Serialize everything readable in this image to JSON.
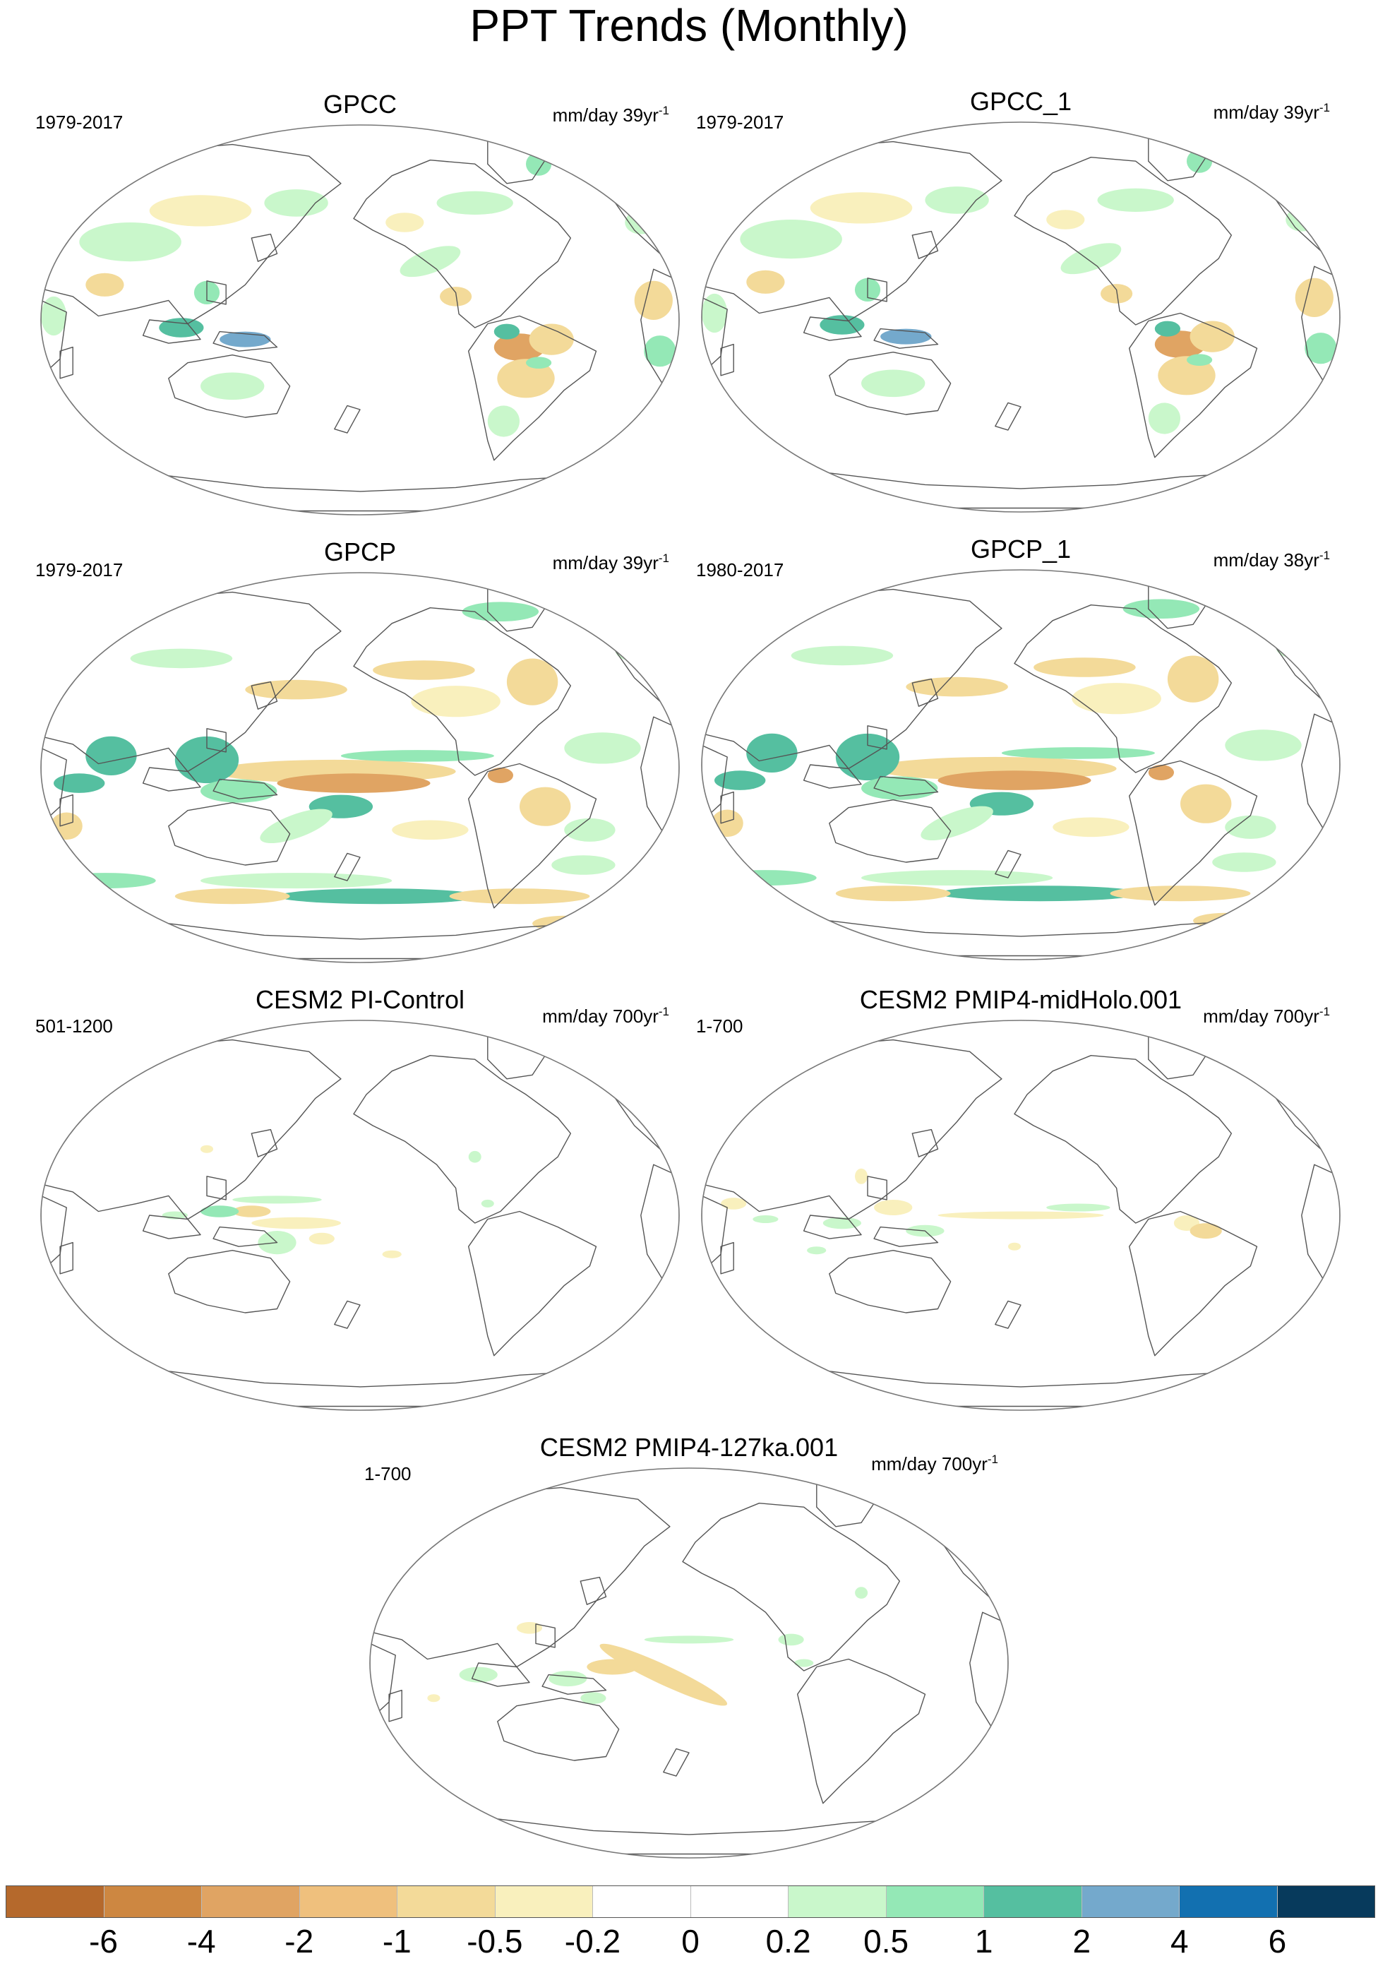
{
  "figure_title": "PPT Trends (Monthly)",
  "panels": [
    {
      "id": "gpcc",
      "title": "GPCC",
      "period": "1979-2017",
      "units": "mm/day 39yr",
      "units_exp": "-1",
      "pattern": "gpcc"
    },
    {
      "id": "gpcc1",
      "title": "GPCC_1",
      "period": "1979-2017",
      "units": "mm/day 39yr",
      "units_exp": "-1",
      "pattern": "gpcc"
    },
    {
      "id": "gpcp",
      "title": "GPCP",
      "period": "1979-2017",
      "units": "mm/day 39yr",
      "units_exp": "-1",
      "pattern": "gpcp"
    },
    {
      "id": "gpcp1",
      "title": "GPCP_1",
      "period": "1980-2017",
      "units": "mm/day 38yr",
      "units_exp": "-1",
      "pattern": "gpcp"
    },
    {
      "id": "picontrol",
      "title": "CESM2 PI-Control",
      "period": "501-1200",
      "units": "mm/day 700yr",
      "units_exp": "-1",
      "pattern": "picontrol"
    },
    {
      "id": "midholo",
      "title": "CESM2 PMIP4-midHolo.001",
      "period": "1-700",
      "units": "mm/day 700yr",
      "units_exp": "-1",
      "pattern": "midholo"
    },
    {
      "id": "ka127",
      "title": "CESM2 PMIP4-127ka.001",
      "period": "1-700",
      "units": "mm/day 700yr",
      "units_exp": "-1",
      "pattern": "ka127"
    }
  ],
  "colorbar": {
    "labels": [
      "-6",
      "-4",
      "-2",
      "-1",
      "-0.5",
      "-0.2",
      "0",
      "0.2",
      "0.5",
      "1",
      "2",
      "4",
      "6"
    ],
    "colors": [
      "#b5692c",
      "#cd8741",
      "#e0a463",
      "#efc07d",
      "#f3da99",
      "#f9f0bd",
      "#ffffff",
      "#ffffff",
      "#c9f7cb",
      "#94e8b6",
      "#55bfa0",
      "#74a9cc",
      "#1270b0",
      "#073a5c"
    ]
  },
  "colors": {
    "dry_strong": "#cd8741",
    "dry_mid": "#e0a463",
    "dry_light": "#f3da99",
    "dry_faint": "#f9f0bd",
    "wet_faint": "#c9f7cb",
    "wet_light": "#94e8b6",
    "wet_mid": "#55bfa0",
    "wet_strong": "#74a9cc",
    "coast": "#555555",
    "frame": "#777777"
  }
}
